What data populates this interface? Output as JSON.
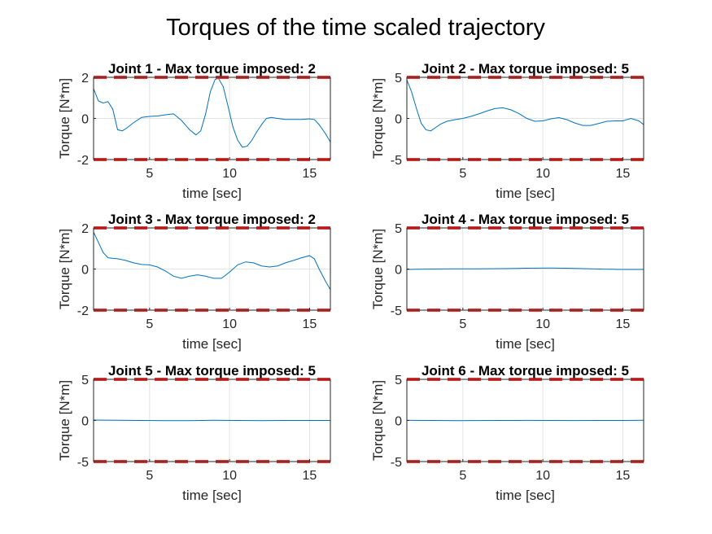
{
  "figure": {
    "title": "Torques of the time scaled trajectory"
  },
  "chart_data": [
    {
      "type": "line",
      "title": "Joint 1 - Max torque imposed: 2",
      "xlabel": "time [sec]",
      "ylabel": "Torque [N*m]",
      "xlim": [
        1.5,
        16.3
      ],
      "ylim": [
        -2,
        2
      ],
      "xticks": [
        5,
        10,
        15
      ],
      "yticks": [
        -2,
        0,
        2
      ],
      "limit": 2,
      "grid": true,
      "series": [
        {
          "color": "#0072BD",
          "x": [
            1.5,
            1.8,
            2.1,
            2.4,
            2.7,
            3.0,
            3.3,
            3.6,
            4.0,
            4.5,
            5.0,
            5.5,
            6.0,
            6.5,
            7.0,
            7.5,
            7.9,
            8.2,
            8.5,
            8.8,
            9.1,
            9.3,
            9.6,
            9.9,
            10.2,
            10.5,
            10.8,
            11.1,
            11.4,
            11.7,
            12.0,
            12.3,
            12.6,
            13.0,
            13.5,
            14.0,
            14.5,
            15.0,
            15.3,
            15.6,
            16.0,
            16.3
          ],
          "y": [
            1.45,
            0.85,
            0.75,
            0.82,
            0.45,
            -0.55,
            -0.6,
            -0.45,
            -0.2,
            0.05,
            0.1,
            0.12,
            0.18,
            0.22,
            -0.1,
            -0.55,
            -0.8,
            -0.6,
            0.2,
            1.3,
            1.9,
            1.95,
            1.55,
            0.6,
            -0.4,
            -1.05,
            -1.4,
            -1.35,
            -1.05,
            -0.65,
            -0.3,
            0.0,
            0.05,
            0.0,
            -0.05,
            -0.05,
            -0.05,
            -0.02,
            -0.05,
            -0.3,
            -0.75,
            -1.15
          ]
        }
      ]
    },
    {
      "type": "line",
      "title": "Joint 2 - Max torque imposed: 5",
      "xlabel": "time [sec]",
      "ylabel": "Torque [N*m]",
      "xlim": [
        1.5,
        16.3
      ],
      "ylim": [
        -5,
        5
      ],
      "xticks": [
        5,
        10,
        15
      ],
      "yticks": [
        -5,
        0,
        5
      ],
      "limit": 5,
      "grid": true,
      "series": [
        {
          "color": "#0072BD",
          "x": [
            1.5,
            1.8,
            2.1,
            2.4,
            2.7,
            3.0,
            3.3,
            3.6,
            4.0,
            4.5,
            5.0,
            5.5,
            6.0,
            6.5,
            7.0,
            7.5,
            8.0,
            8.5,
            9.0,
            9.5,
            10.0,
            10.5,
            11.0,
            11.5,
            12.0,
            12.5,
            13.0,
            13.5,
            14.0,
            14.5,
            15.0,
            15.5,
            16.0,
            16.3
          ],
          "y": [
            4.7,
            3.2,
            1.2,
            -0.6,
            -1.4,
            -1.5,
            -1.1,
            -0.7,
            -0.35,
            -0.15,
            0.0,
            0.25,
            0.55,
            0.9,
            1.2,
            1.3,
            1.05,
            0.6,
            0.0,
            -0.35,
            -0.3,
            -0.05,
            0.1,
            -0.15,
            -0.55,
            -0.85,
            -0.85,
            -0.6,
            -0.35,
            -0.3,
            -0.3,
            0.0,
            -0.3,
            -0.75
          ]
        }
      ]
    },
    {
      "type": "line",
      "title": "Joint 3 - Max torque imposed: 2",
      "xlabel": "time [sec]",
      "ylabel": "Torque [N*m]",
      "xlim": [
        1.5,
        16.3
      ],
      "ylim": [
        -2,
        2
      ],
      "xticks": [
        5,
        10,
        15
      ],
      "yticks": [
        -2,
        0,
        2
      ],
      "limit": 2,
      "grid": true,
      "series": [
        {
          "color": "#0072BD",
          "x": [
            1.5,
            1.8,
            2.1,
            2.4,
            2.7,
            3.0,
            3.5,
            4.0,
            4.5,
            5.0,
            5.5,
            6.0,
            6.5,
            7.0,
            7.5,
            8.0,
            8.5,
            9.0,
            9.5,
            10.0,
            10.5,
            11.0,
            11.5,
            12.0,
            12.5,
            13.0,
            13.5,
            14.0,
            14.5,
            15.0,
            15.3,
            15.6,
            16.0,
            16.3
          ],
          "y": [
            1.8,
            1.3,
            0.8,
            0.55,
            0.52,
            0.5,
            0.42,
            0.3,
            0.22,
            0.2,
            0.1,
            -0.1,
            -0.35,
            -0.45,
            -0.35,
            -0.28,
            -0.35,
            -0.45,
            -0.45,
            -0.15,
            0.2,
            0.35,
            0.3,
            0.15,
            0.1,
            0.15,
            0.3,
            0.42,
            0.55,
            0.65,
            0.5,
            0.0,
            -0.6,
            -1.0
          ]
        }
      ]
    },
    {
      "type": "line",
      "title": "Joint 4 - Max torque imposed: 5",
      "xlabel": "time [sec]",
      "ylabel": "Torque [N*m]",
      "xlim": [
        1.5,
        16.3
      ],
      "ylim": [
        -5,
        5
      ],
      "xticks": [
        5,
        10,
        15
      ],
      "yticks": [
        -5,
        0,
        5
      ],
      "limit": 5,
      "grid": true,
      "series": [
        {
          "color": "#0072BD",
          "x": [
            1.5,
            3.0,
            4.5,
            6.0,
            7.5,
            9.0,
            10.5,
            12.0,
            13.5,
            15.0,
            16.3
          ],
          "y": [
            -0.05,
            0.0,
            0.02,
            0.03,
            0.05,
            0.1,
            0.12,
            0.08,
            0.0,
            -0.05,
            -0.05
          ]
        }
      ]
    },
    {
      "type": "line",
      "title": "Joint 5 - Max torque imposed: 5",
      "xlabel": "time [sec]",
      "ylabel": "Torque [N*m]",
      "xlim": [
        1.5,
        16.3
      ],
      "ylim": [
        -5,
        5
      ],
      "xticks": [
        5,
        10,
        15
      ],
      "yticks": [
        -5,
        0,
        5
      ],
      "limit": 5,
      "grid": true,
      "series": [
        {
          "color": "#0072BD",
          "x": [
            1.5,
            3.0,
            4.5,
            6.0,
            7.5,
            9.0,
            10.5,
            12.0,
            13.5,
            15.0,
            16.3
          ],
          "y": [
            0.05,
            0.03,
            0.0,
            -0.03,
            -0.02,
            0.02,
            0.0,
            -0.02,
            0.0,
            0.0,
            0.0
          ]
        }
      ]
    },
    {
      "type": "line",
      "title": "Joint 6 - Max torque imposed: 5",
      "xlabel": "time [sec]",
      "ylabel": "Torque [N*m]",
      "xlim": [
        1.5,
        16.3
      ],
      "ylim": [
        -5,
        5
      ],
      "xticks": [
        5,
        10,
        15
      ],
      "yticks": [
        -5,
        0,
        5
      ],
      "limit": 5,
      "grid": true,
      "series": [
        {
          "color": "#0072BD",
          "x": [
            1.5,
            3.0,
            4.5,
            6.0,
            7.5,
            9.0,
            10.5,
            12.0,
            13.5,
            15.0,
            16.3
          ],
          "y": [
            0.02,
            0.0,
            -0.02,
            -0.01,
            0.0,
            0.01,
            0.0,
            -0.01,
            0.0,
            0.0,
            0.02
          ]
        }
      ]
    }
  ]
}
